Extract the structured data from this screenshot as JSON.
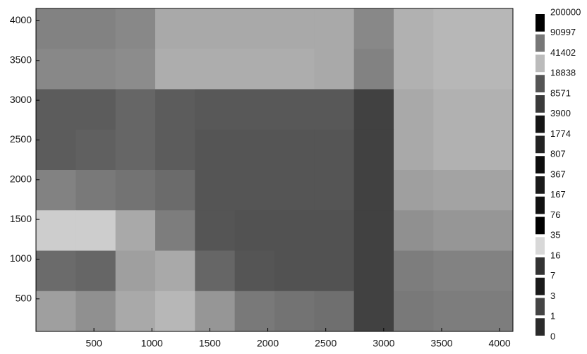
{
  "chart_data": {
    "type": "heatmap",
    "xlim": [
      0,
      4115
    ],
    "ylim": [
      90,
      4155
    ],
    "xticks": [
      500,
      1000,
      1500,
      2000,
      2500,
      3000,
      3500,
      4000
    ],
    "yticks": [
      500,
      1000,
      1500,
      2000,
      2500,
      3000,
      3500,
      4000
    ],
    "cmap": [
      "#ffffff",
      "#000000"
    ],
    "values": [
      [
        400,
        400,
        300,
        60,
        60,
        60,
        60,
        60,
        300,
        40,
        30,
        30
      ],
      [
        300,
        300,
        250,
        50,
        50,
        50,
        50,
        60,
        400,
        40,
        30,
        30
      ],
      [
        2500,
        2500,
        1500,
        2500,
        3000,
        3000,
        3000,
        3000,
        9000,
        60,
        40,
        40
      ],
      [
        2500,
        2000,
        1500,
        2500,
        3500,
        3500,
        3500,
        3500,
        9000,
        60,
        40,
        40
      ],
      [
        400,
        600,
        800,
        1200,
        3500,
        3500,
        3500,
        3500,
        9000,
        100,
        80,
        80
      ],
      [
        10,
        10,
        60,
        500,
        3500,
        4000,
        4000,
        4000,
        9000,
        200,
        150,
        150
      ],
      [
        1200,
        1500,
        100,
        60,
        1500,
        3500,
        4000,
        4000,
        9000,
        500,
        400,
        400
      ],
      [
        100,
        200,
        60,
        30,
        150,
        600,
        800,
        1000,
        9000,
        600,
        500,
        500
      ]
    ],
    "colorbar_levels": [
      0,
      1,
      3,
      7,
      16,
      35,
      76,
      167,
      367,
      807,
      1774,
      3900,
      8571,
      18838,
      41402,
      90997,
      200000
    ],
    "colorbar_colors": [
      "#2a2a2a",
      "#444444",
      "#1a1a1a",
      "#333333",
      "#d8d8d8",
      "#000000",
      "#111111",
      "#1a1a1a",
      "#0d0d0d",
      "#222222",
      "#151515",
      "#3a3a3a",
      "#555555",
      "#bbbbbb",
      "#777777",
      "#000000"
    ]
  }
}
